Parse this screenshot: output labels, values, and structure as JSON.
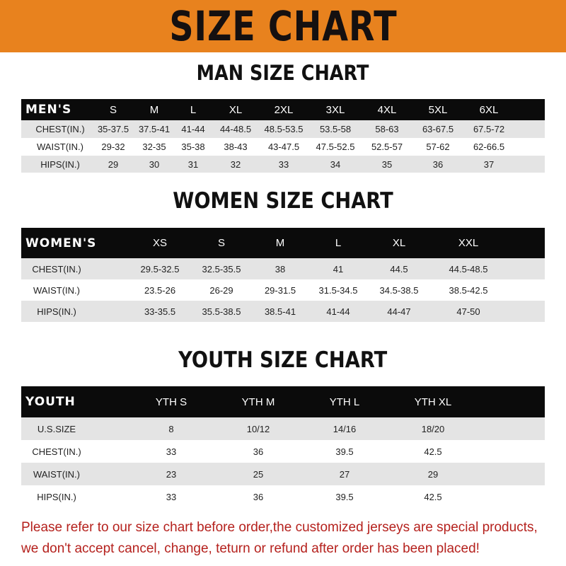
{
  "banner": {
    "title": "SIZE CHART",
    "color": "#e8821e"
  },
  "men": {
    "title": "MAN SIZE CHART",
    "header": [
      "MEN'S",
      "S",
      "M",
      "L",
      "XL",
      "2XL",
      "3XL",
      "4XL",
      "5XL",
      "6XL"
    ],
    "rows": [
      [
        "CHEST(IN.)",
        "35-37.5",
        "37.5-41",
        "41-44",
        "44-48.5",
        "48.5-53.5",
        "53.5-58",
        "58-63",
        "63-67.5",
        "67.5-72"
      ],
      [
        "WAIST(IN.)",
        "29-32",
        "32-35",
        "35-38",
        "38-43",
        "43-47.5",
        "47.5-52.5",
        "52.5-57",
        "57-62",
        "62-66.5"
      ],
      [
        "HIPS(IN.)",
        "29",
        "30",
        "31",
        "32",
        "33",
        "34",
        "35",
        "36",
        "37"
      ]
    ]
  },
  "women": {
    "title": "WOMEN SIZE CHART",
    "header": [
      "WOMEN'S",
      "XS",
      "S",
      "M",
      "L",
      "XL",
      "XXL"
    ],
    "rows": [
      [
        "CHEST(IN.)",
        "29.5-32.5",
        "32.5-35.5",
        "38",
        "41",
        "44.5",
        "44.5-48.5"
      ],
      [
        "WAIST(IN.)",
        "23.5-26",
        "26-29",
        "29-31.5",
        "31.5-34.5",
        "34.5-38.5",
        "38.5-42.5"
      ],
      [
        "HIPS(IN.)",
        "33-35.5",
        "35.5-38.5",
        "38.5-41",
        "41-44",
        "44-47",
        "47-50"
      ]
    ]
  },
  "youth": {
    "title": "YOUTH SIZE CHART",
    "header": [
      "YOUTH",
      "YTH S",
      "YTH M",
      "YTH L",
      "YTH XL"
    ],
    "rows": [
      [
        "U.S.SIZE",
        "8",
        "10/12",
        "14/16",
        "18/20"
      ],
      [
        "CHEST(IN.)",
        "33",
        "36",
        "39.5",
        "42.5"
      ],
      [
        "WAIST(IN.)",
        "23",
        "25",
        "27",
        "29"
      ],
      [
        "HIPS(IN.)",
        "33",
        "36",
        "39.5",
        "42.5"
      ]
    ]
  },
  "notice": {
    "line1": "Please refer to our size chart before order,the customized jerseys are special products,",
    "line2": "we don't accept cancel, change, teturn or refund after order has been placed!",
    "color": "#b5211d"
  }
}
